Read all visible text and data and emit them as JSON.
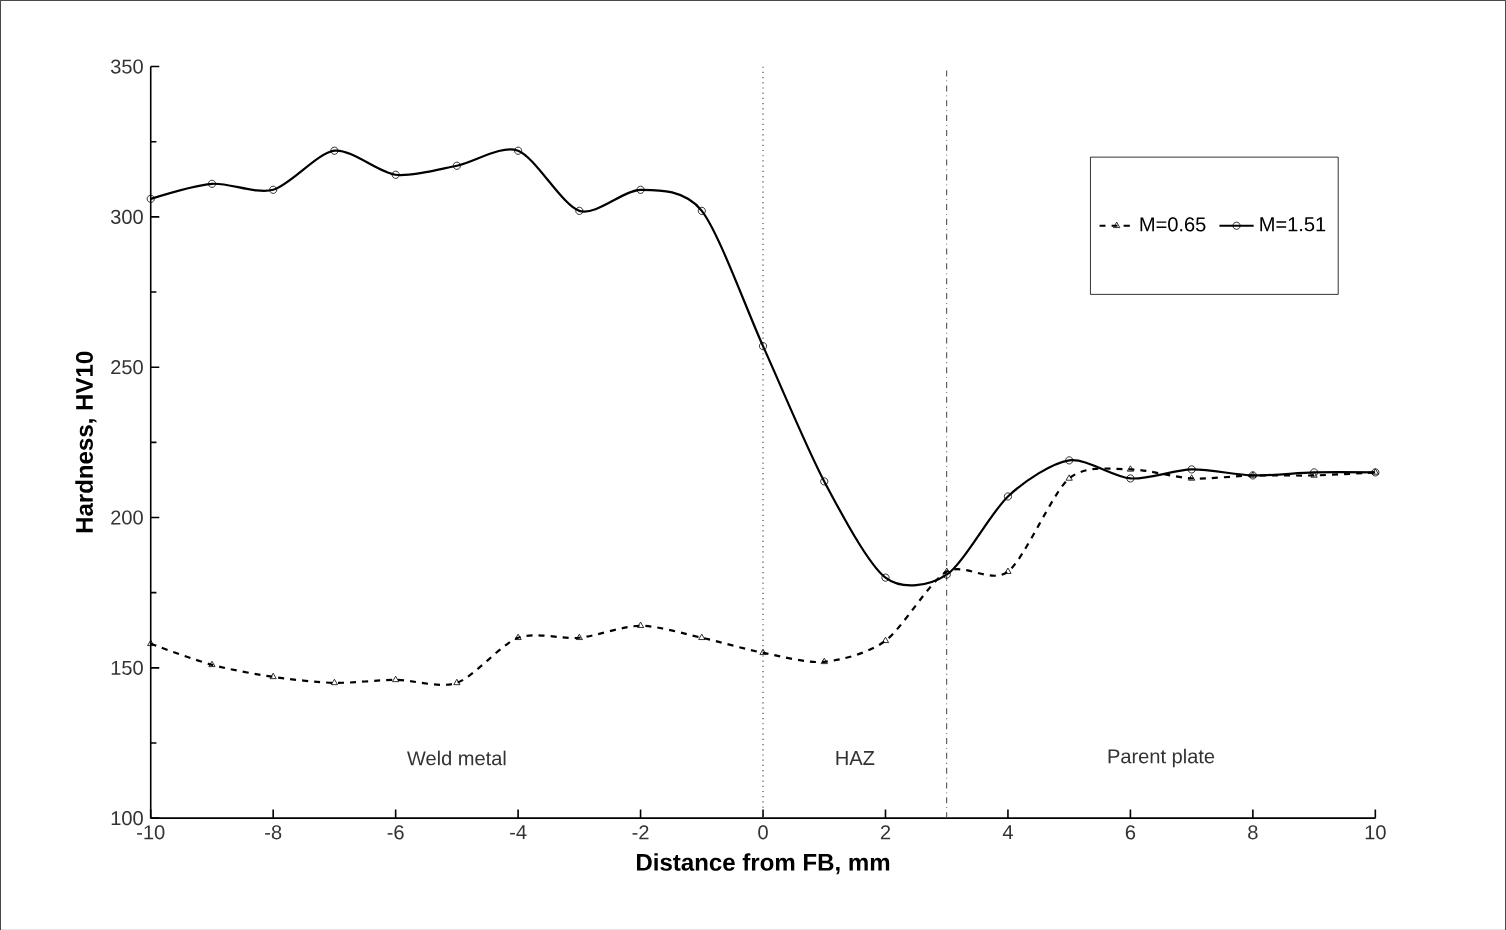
{
  "chart_data": {
    "type": "line",
    "xlabel": "Distance from FB, mm",
    "ylabel": "Hardness, HV10",
    "x": [
      -10,
      -9,
      -8,
      -7,
      -6,
      -5,
      -4,
      -3,
      -2,
      -1,
      0,
      1,
      2,
      3,
      4,
      5,
      6,
      7,
      8,
      9,
      10
    ],
    "series": [
      {
        "name": "M=0.65",
        "color": "#000000",
        "marker": "triangle",
        "line_style": "dashed",
        "values": [
          158,
          151,
          147,
          145,
          146,
          145,
          160,
          160,
          164,
          160,
          155,
          152,
          159,
          182,
          182,
          213,
          216,
          213,
          214,
          214,
          215
        ]
      },
      {
        "name": "M=1.51",
        "color": "#000000",
        "marker": "circle",
        "line_style": "solid",
        "values": [
          306,
          311,
          309,
          322,
          314,
          317,
          322,
          302,
          309,
          302,
          257,
          212,
          180,
          181,
          207,
          219,
          213,
          216,
          214,
          215,
          215
        ]
      }
    ],
    "xlim": [
      -10,
      10
    ],
    "xticks": [
      -10,
      -8,
      -6,
      -4,
      -2,
      0,
      2,
      4,
      6,
      8,
      10
    ],
    "ylim": [
      100,
      350
    ],
    "yticks": [
      100,
      150,
      200,
      250,
      300,
      350
    ],
    "ref_lines": [
      {
        "axis": "x",
        "value": 0,
        "line_style": "dotted"
      },
      {
        "axis": "x",
        "value": 3,
        "line_style": "dashdotted"
      }
    ],
    "annotations": [
      "Weld metal",
      "HAZ",
      "Parent plate"
    ],
    "legend": "top right"
  }
}
